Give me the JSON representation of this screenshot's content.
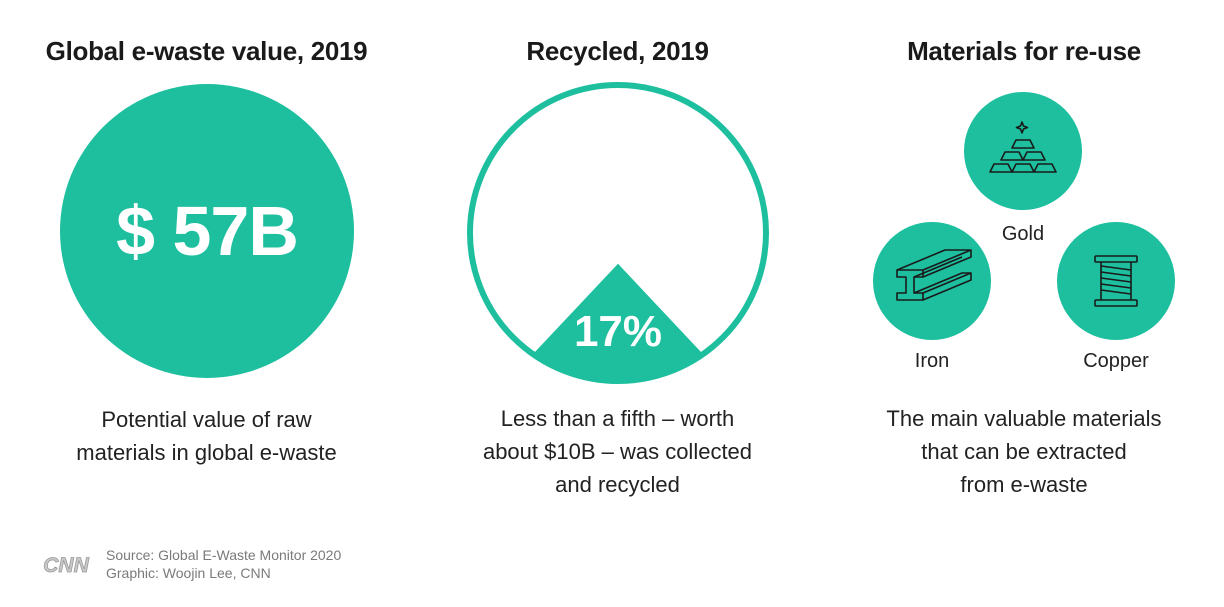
{
  "accent_color": "#1dbf9f",
  "panels": {
    "value": {
      "title": "Global e-waste value, 2019",
      "value_label": "$ 57B",
      "caption": [
        "Potential value of raw",
        "materials in global e-waste"
      ]
    },
    "recycled": {
      "title": "Recycled, 2019",
      "percent_label": "17%",
      "caption": [
        "Less than a fifth – worth",
        "about $10B – was collected",
        "and recycled"
      ]
    },
    "materials": {
      "title": "Materials for re-use",
      "items": [
        {
          "label": "Gold",
          "icon": "gold-bars-icon"
        },
        {
          "label": "Iron",
          "icon": "iron-beam-icon"
        },
        {
          "label": "Copper",
          "icon": "copper-spool-icon"
        }
      ],
      "caption": [
        "The main valuable materials",
        "that can be extracted",
        "from e-waste"
      ]
    }
  },
  "chart_data": [
    {
      "type": "pie",
      "title": "Global e-waste value, 2019",
      "categories": [
        "Potential value of raw materials in global e-waste"
      ],
      "values": [
        57
      ],
      "unit": "$B"
    },
    {
      "type": "pie",
      "title": "Recycled, 2019",
      "categories": [
        "Recycled"
      ],
      "values": [
        17
      ],
      "unit": "%"
    }
  ],
  "footer": {
    "logo": "CNN",
    "source": "Source: Global E-Waste Monitor 2020",
    "credit": "Graphic: Woojin Lee, CNN"
  }
}
